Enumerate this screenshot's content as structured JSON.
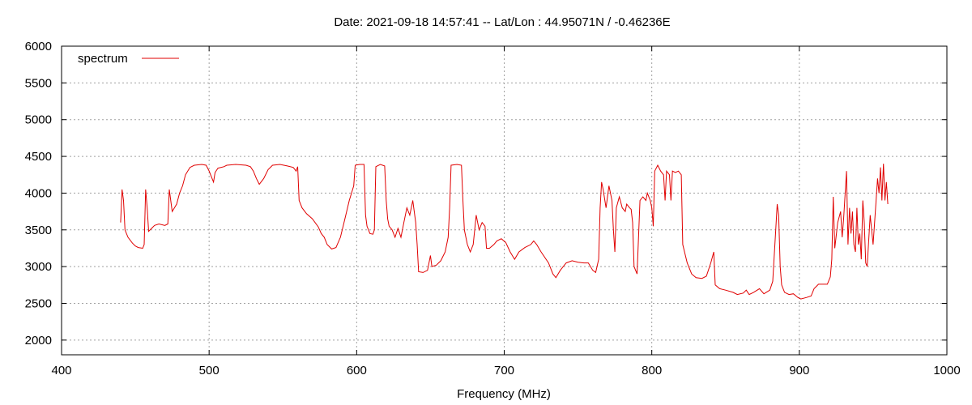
{
  "chart_data": {
    "type": "line",
    "title": "Date: 2021-09-18 14:57:41  --  Lat/Lon : 44.95071N / -0.46236E",
    "xlabel": "Frequency (MHz)",
    "ylabel": "",
    "xlim": [
      400,
      1000
    ],
    "ylim": [
      1800,
      6000
    ],
    "xticks": [
      400,
      500,
      600,
      700,
      800,
      900,
      1000
    ],
    "yticks": [
      2000,
      2500,
      3000,
      3500,
      4000,
      4500,
      5000,
      5500,
      6000
    ],
    "grid": true,
    "legend_position": "top-left",
    "series": [
      {
        "name": "spectrum",
        "color": "#e00000",
        "points": [
          [
            440,
            3600
          ],
          [
            441,
            4050
          ],
          [
            442,
            3900
          ],
          [
            443,
            3500
          ],
          [
            445,
            3400
          ],
          [
            448,
            3320
          ],
          [
            450,
            3280
          ],
          [
            452,
            3260
          ],
          [
            455,
            3250
          ],
          [
            456,
            3300
          ],
          [
            457,
            4050
          ],
          [
            458,
            3800
          ],
          [
            459,
            3480
          ],
          [
            461,
            3520
          ],
          [
            463,
            3560
          ],
          [
            466,
            3580
          ],
          [
            470,
            3560
          ],
          [
            472,
            3580
          ],
          [
            473,
            4050
          ],
          [
            474,
            3900
          ],
          [
            475,
            3750
          ],
          [
            478,
            3850
          ],
          [
            480,
            4000
          ],
          [
            482,
            4100
          ],
          [
            484,
            4250
          ],
          [
            487,
            4350
          ],
          [
            490,
            4380
          ],
          [
            495,
            4390
          ],
          [
            498,
            4380
          ],
          [
            500,
            4300
          ],
          [
            502,
            4200
          ],
          [
            503,
            4150
          ],
          [
            504,
            4280
          ],
          [
            506,
            4340
          ],
          [
            510,
            4360
          ],
          [
            512,
            4380
          ],
          [
            518,
            4390
          ],
          [
            525,
            4380
          ],
          [
            528,
            4360
          ],
          [
            530,
            4300
          ],
          [
            532,
            4200
          ],
          [
            534,
            4120
          ],
          [
            537,
            4200
          ],
          [
            540,
            4320
          ],
          [
            543,
            4380
          ],
          [
            548,
            4390
          ],
          [
            553,
            4370
          ],
          [
            557,
            4350
          ],
          [
            559,
            4300
          ],
          [
            560,
            4360
          ],
          [
            561,
            3900
          ],
          [
            563,
            3800
          ],
          [
            566,
            3720
          ],
          [
            570,
            3650
          ],
          [
            574,
            3540
          ],
          [
            576,
            3450
          ],
          [
            578,
            3400
          ],
          [
            580,
            3300
          ],
          [
            583,
            3240
          ],
          [
            586,
            3260
          ],
          [
            589,
            3400
          ],
          [
            592,
            3650
          ],
          [
            595,
            3900
          ],
          [
            598,
            4100
          ],
          [
            599,
            4380
          ],
          [
            602,
            4390
          ],
          [
            605,
            4390
          ],
          [
            606,
            3700
          ],
          [
            607,
            3550
          ],
          [
            609,
            3450
          ],
          [
            611,
            3440
          ],
          [
            612,
            3500
          ],
          [
            613,
            4360
          ],
          [
            616,
            4390
          ],
          [
            619,
            4370
          ],
          [
            620,
            3900
          ],
          [
            621,
            3650
          ],
          [
            622,
            3550
          ],
          [
            624,
            3500
          ],
          [
            626,
            3400
          ],
          [
            628,
            3520
          ],
          [
            630,
            3400
          ],
          [
            632,
            3600
          ],
          [
            634,
            3800
          ],
          [
            636,
            3700
          ],
          [
            638,
            3900
          ],
          [
            640,
            3600
          ],
          [
            641,
            3300
          ],
          [
            642,
            2930
          ],
          [
            645,
            2920
          ],
          [
            648,
            2950
          ],
          [
            650,
            3150
          ],
          [
            651,
            3000
          ],
          [
            654,
            3020
          ],
          [
            657,
            3080
          ],
          [
            660,
            3200
          ],
          [
            662,
            3400
          ],
          [
            663,
            3800
          ],
          [
            664,
            4380
          ],
          [
            668,
            4390
          ],
          [
            671,
            4380
          ],
          [
            672,
            3900
          ],
          [
            673,
            3500
          ],
          [
            675,
            3300
          ],
          [
            677,
            3200
          ],
          [
            679,
            3300
          ],
          [
            681,
            3700
          ],
          [
            683,
            3500
          ],
          [
            685,
            3600
          ],
          [
            687,
            3550
          ],
          [
            688,
            3250
          ],
          [
            690,
            3250
          ],
          [
            693,
            3300
          ],
          [
            695,
            3350
          ],
          [
            698,
            3380
          ],
          [
            701,
            3330
          ],
          [
            704,
            3200
          ],
          [
            707,
            3100
          ],
          [
            710,
            3200
          ],
          [
            714,
            3260
          ],
          [
            718,
            3300
          ],
          [
            720,
            3350
          ],
          [
            722,
            3300
          ],
          [
            725,
            3200
          ],
          [
            730,
            3050
          ],
          [
            733,
            2900
          ],
          [
            735,
            2850
          ],
          [
            738,
            2950
          ],
          [
            742,
            3050
          ],
          [
            746,
            3080
          ],
          [
            750,
            3060
          ],
          [
            754,
            3050
          ],
          [
            757,
            3050
          ],
          [
            760,
            2950
          ],
          [
            762,
            2920
          ],
          [
            764,
            3100
          ],
          [
            765,
            3800
          ],
          [
            766,
            4150
          ],
          [
            767,
            4050
          ],
          [
            769,
            3800
          ],
          [
            771,
            4100
          ],
          [
            773,
            3900
          ],
          [
            774,
            3500
          ],
          [
            775,
            3200
          ],
          [
            776,
            3800
          ],
          [
            778,
            3950
          ],
          [
            780,
            3800
          ],
          [
            782,
            3750
          ],
          [
            783,
            3850
          ],
          [
            785,
            3800
          ],
          [
            786,
            3780
          ],
          [
            787,
            3600
          ],
          [
            788,
            3000
          ],
          [
            790,
            2900
          ],
          [
            792,
            3900
          ],
          [
            794,
            3950
          ],
          [
            796,
            3900
          ],
          [
            797,
            4000
          ],
          [
            799,
            3900
          ],
          [
            800,
            3800
          ],
          [
            801,
            3550
          ],
          [
            802,
            4300
          ],
          [
            804,
            4380
          ],
          [
            806,
            4300
          ],
          [
            808,
            4250
          ],
          [
            809,
            3900
          ],
          [
            810,
            4300
          ],
          [
            812,
            4250
          ],
          [
            813,
            3900
          ],
          [
            814,
            4300
          ],
          [
            816,
            4280
          ],
          [
            818,
            4300
          ],
          [
            820,
            4250
          ],
          [
            821,
            3300
          ],
          [
            824,
            3050
          ],
          [
            827,
            2900
          ],
          [
            830,
            2850
          ],
          [
            834,
            2840
          ],
          [
            837,
            2870
          ],
          [
            840,
            3050
          ],
          [
            842,
            3200
          ],
          [
            843,
            2750
          ],
          [
            846,
            2700
          ],
          [
            850,
            2680
          ],
          [
            855,
            2650
          ],
          [
            858,
            2620
          ],
          [
            862,
            2640
          ],
          [
            864,
            2680
          ],
          [
            866,
            2620
          ],
          [
            869,
            2650
          ],
          [
            873,
            2700
          ],
          [
            876,
            2630
          ],
          [
            880,
            2680
          ],
          [
            882,
            2800
          ],
          [
            884,
            3500
          ],
          [
            885,
            3850
          ],
          [
            886,
            3700
          ],
          [
            887,
            3000
          ],
          [
            888,
            2750
          ],
          [
            890,
            2650
          ],
          [
            893,
            2620
          ],
          [
            896,
            2630
          ],
          [
            899,
            2580
          ],
          [
            901,
            2560
          ],
          [
            905,
            2580
          ],
          [
            908,
            2600
          ],
          [
            910,
            2700
          ],
          [
            913,
            2760
          ],
          [
            916,
            2760
          ],
          [
            919,
            2760
          ],
          [
            921,
            2860
          ],
          [
            922,
            3100
          ],
          [
            923,
            3950
          ],
          [
            924,
            3250
          ],
          [
            926,
            3600
          ],
          [
            928,
            3750
          ],
          [
            929,
            3400
          ],
          [
            930,
            3650
          ],
          [
            932,
            4300
          ],
          [
            933,
            3300
          ],
          [
            934,
            3800
          ],
          [
            935,
            3450
          ],
          [
            936,
            3750
          ],
          [
            937,
            3300
          ],
          [
            938,
            3200
          ],
          [
            939,
            3800
          ],
          [
            940,
            3300
          ],
          [
            941,
            3450
          ],
          [
            942,
            3100
          ],
          [
            943,
            3900
          ],
          [
            944,
            3600
          ],
          [
            945,
            3050
          ],
          [
            946,
            3000
          ],
          [
            948,
            3700
          ],
          [
            949,
            3500
          ],
          [
            950,
            3300
          ],
          [
            952,
            3900
          ],
          [
            953,
            4200
          ],
          [
            954,
            4000
          ],
          [
            955,
            4350
          ],
          [
            956,
            3900
          ],
          [
            957,
            4400
          ],
          [
            958,
            3900
          ],
          [
            959,
            4150
          ],
          [
            960,
            3850
          ]
        ]
      }
    ]
  }
}
